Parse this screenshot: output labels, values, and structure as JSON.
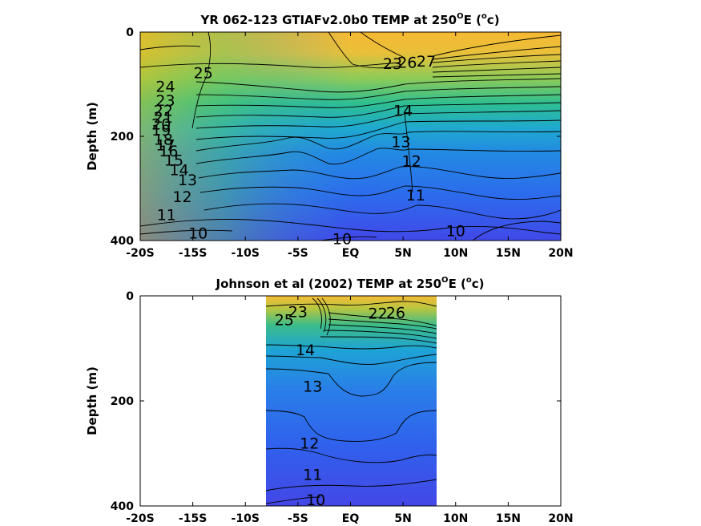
{
  "chart_data": [
    {
      "type": "contour",
      "title_main": "YR 062-123 GTIAFv2.0b0 TEMP at 250",
      "title_sup": "O",
      "title_mid": "E (",
      "title_sup2": "o",
      "title_end": "c)",
      "ylabel": "Depth (m)",
      "xlim": [
        -20,
        20
      ],
      "ylim": [
        400,
        0
      ],
      "x_ticks": [
        -20,
        -15,
        -10,
        -5,
        0,
        5,
        10,
        15,
        20
      ],
      "x_tick_labels": [
        "-20S",
        "-15S",
        "-10S",
        "-5S",
        "EQ",
        "5N",
        "10N",
        "15N",
        "20N"
      ],
      "y_ticks": [
        0,
        200,
        400
      ],
      "y_tick_labels": [
        "0",
        "200",
        "400"
      ],
      "data_x_range": [
        -20,
        20
      ],
      "contour_levels": [
        10,
        11,
        12,
        13,
        14,
        15,
        16,
        17,
        18,
        19,
        20,
        21,
        22,
        23,
        24,
        25,
        26,
        27
      ],
      "contour_labels": [
        {
          "text": "25",
          "x": -14,
          "y": 78
        },
        {
          "text": "24",
          "x": -17.6,
          "y": 104
        },
        {
          "text": "23",
          "x": -17.6,
          "y": 131
        },
        {
          "text": "22",
          "x": -17.8,
          "y": 150
        },
        {
          "text": "21",
          "x": -17.8,
          "y": 163
        },
        {
          "text": "20",
          "x": -18,
          "y": 176
        },
        {
          "text": "19",
          "x": -18,
          "y": 188
        },
        {
          "text": "18",
          "x": -17.8,
          "y": 205
        },
        {
          "text": "17",
          "x": -17.6,
          "y": 216
        },
        {
          "text": "16",
          "x": -17.3,
          "y": 228
        },
        {
          "text": "15",
          "x": -16.8,
          "y": 245
        },
        {
          "text": "14",
          "x": -16.3,
          "y": 264
        },
        {
          "text": "13",
          "x": -15.5,
          "y": 283
        },
        {
          "text": "12",
          "x": -16,
          "y": 315
        },
        {
          "text": "11",
          "x": -17.5,
          "y": 350
        },
        {
          "text": "10",
          "x": -14.5,
          "y": 385
        },
        {
          "text": "10",
          "x": -0.8,
          "y": 396
        },
        {
          "text": "23",
          "x": 4,
          "y": 60
        },
        {
          "text": "26",
          "x": 5.4,
          "y": 58
        },
        {
          "text": "27",
          "x": 7.2,
          "y": 55
        },
        {
          "text": "14",
          "x": 5,
          "y": 150
        },
        {
          "text": "13",
          "x": 4.8,
          "y": 210
        },
        {
          "text": "12",
          "x": 5.8,
          "y": 247
        },
        {
          "text": "11",
          "x": 6.2,
          "y": 312
        },
        {
          "text": "10",
          "x": 10,
          "y": 381
        }
      ]
    },
    {
      "type": "contour",
      "title_main": "Johnson et al (2002) TEMP at 250",
      "title_sup": "O",
      "title_mid": "E (",
      "title_sup2": "o",
      "title_end": "c)",
      "ylabel": "Depth (m)",
      "xlim": [
        -20,
        20
      ],
      "ylim": [
        400,
        0
      ],
      "x_ticks": [
        -20,
        -15,
        -10,
        -5,
        0,
        5,
        10,
        15,
        20
      ],
      "x_tick_labels": [
        "-20S",
        "-15S",
        "-10S",
        "-5S",
        "EQ",
        "5N",
        "10N",
        "15N",
        "20N"
      ],
      "y_ticks": [
        0,
        200,
        400
      ],
      "y_tick_labels": [
        "0",
        "200",
        "400"
      ],
      "data_x_range": [
        -8,
        8
      ],
      "contour_levels": [
        10,
        11,
        12,
        13,
        14,
        15,
        16,
        17,
        18,
        19,
        20,
        21,
        22,
        23,
        24,
        25,
        26
      ],
      "contour_labels": [
        {
          "text": "25",
          "x": -6.3,
          "y": 45
        },
        {
          "text": "23",
          "x": -5,
          "y": 30
        },
        {
          "text": "14",
          "x": -4.3,
          "y": 102
        },
        {
          "text": "13",
          "x": -3.6,
          "y": 172
        },
        {
          "text": "12",
          "x": -3.9,
          "y": 280
        },
        {
          "text": "11",
          "x": -3.6,
          "y": 340
        },
        {
          "text": "10",
          "x": -3.3,
          "y": 388
        },
        {
          "text": "22",
          "x": 2.6,
          "y": 33
        },
        {
          "text": "26",
          "x": 4.3,
          "y": 31
        }
      ]
    }
  ]
}
